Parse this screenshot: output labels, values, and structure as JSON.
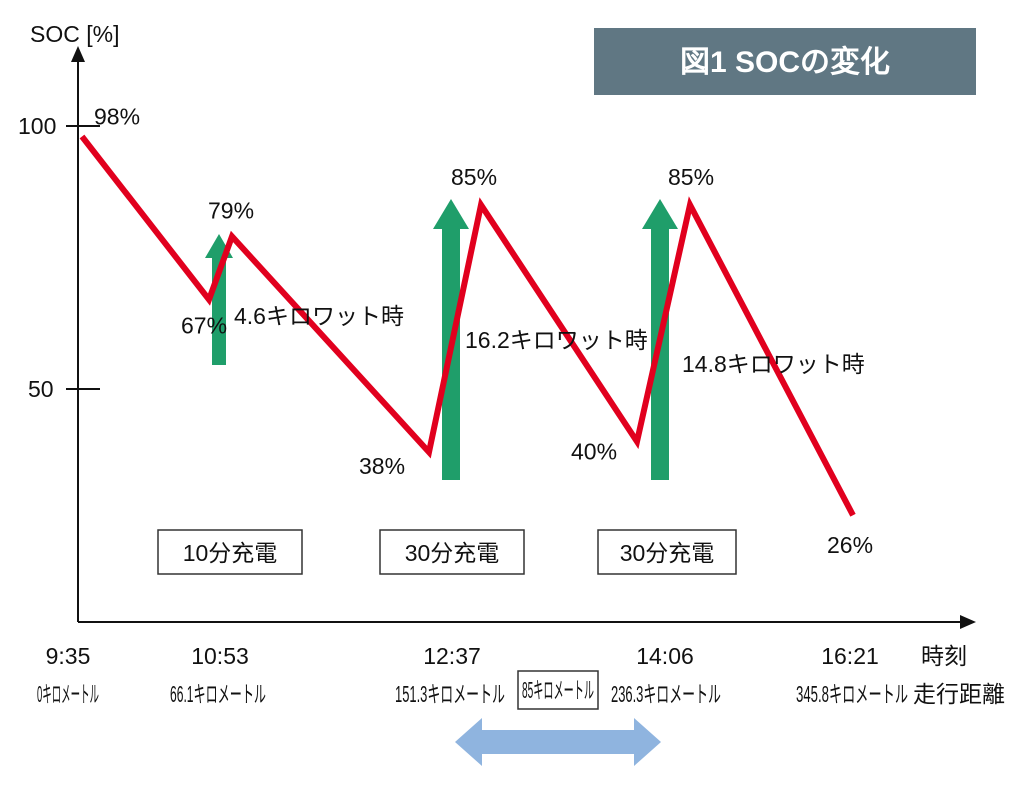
{
  "title": "図1  SOCの変化",
  "chart_data": {
    "type": "line",
    "ylabel": "SOC [%]",
    "yticks": [
      "100",
      "50"
    ],
    "ylim": [
      0,
      110
    ],
    "xlabel_time": "時刻",
    "xlabel_distance": "走行距離",
    "times": [
      "9:35",
      "10:53",
      "12:37",
      "14:06",
      "16:21"
    ],
    "distances": [
      "0キロメートル",
      "66.1キロメートル",
      "151.3キロメートル",
      "236.3キロメートル",
      "345.8キロメートル"
    ],
    "segment_distance": "85キロメートル",
    "series": [
      {
        "points": [
          {
            "t": "9:35",
            "y": 98
          },
          {
            "t": "10:53",
            "y": 67
          },
          {
            "t": "10:53",
            "y": 79
          },
          {
            "t": "12:37",
            "y": 38
          },
          {
            "t": "12:37",
            "y": 85
          },
          {
            "t": "14:06",
            "y": 40
          },
          {
            "t": "14:06",
            "y": 85
          },
          {
            "t": "16:21",
            "y": 26
          }
        ],
        "color": "#e1001e"
      }
    ],
    "point_labels": [
      "98%",
      "67%",
      "79%",
      "38%",
      "85%",
      "40%",
      "85%",
      "26%"
    ],
    "charges": [
      {
        "label": "10分充電",
        "energy": "4.6キロワット時",
        "color": "#1f9e6a"
      },
      {
        "label": "30分充電",
        "energy": "16.2キロワット時",
        "color": "#1f9e6a"
      },
      {
        "label": "30分充電",
        "energy": "14.8キロワット時",
        "color": "#1f9e6a"
      }
    ],
    "span_arrow_color": "#8fb4df"
  }
}
